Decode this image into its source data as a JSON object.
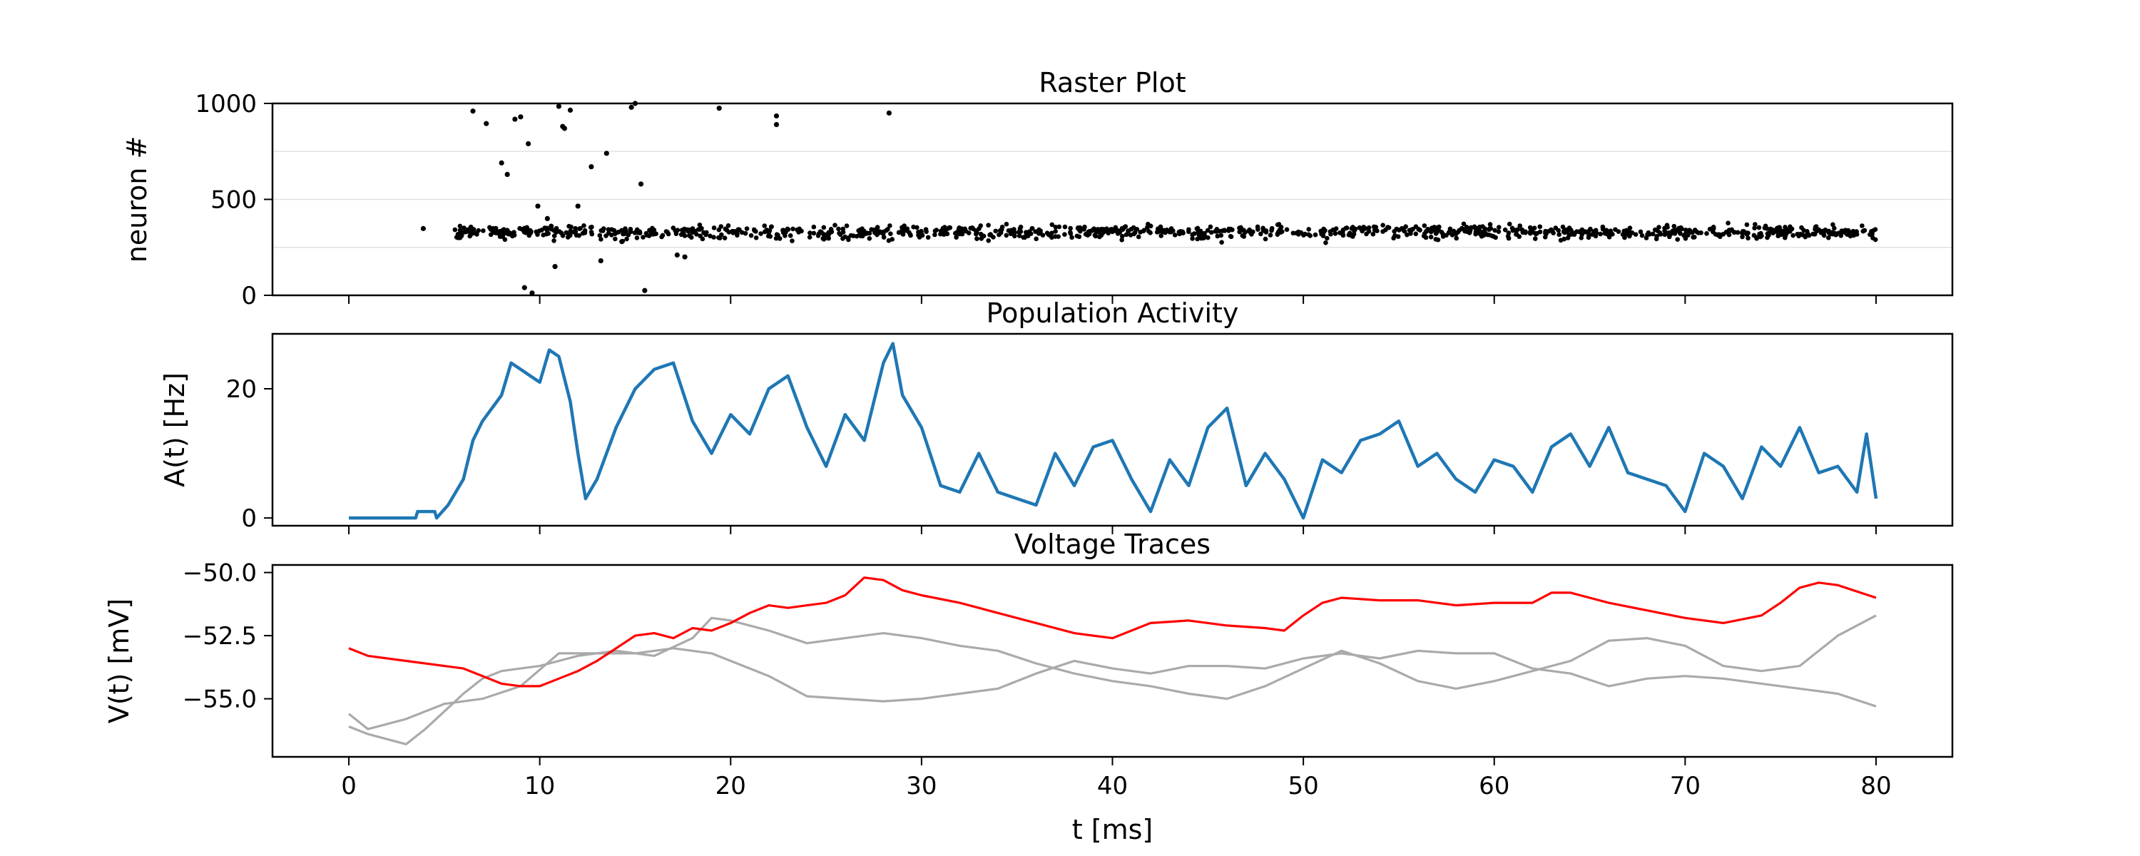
{
  "chart_data": [
    {
      "type": "scatter",
      "title": "Raster Plot",
      "xlabel": "",
      "ylabel": "neuron #",
      "xlim": [
        -4,
        84
      ],
      "ylim": [
        0,
        1000
      ],
      "yticks": [
        0,
        500,
        1000
      ],
      "grid": "horizontal",
      "points": [
        [
          3.9,
          348
        ],
        [
          6.5,
          960
        ],
        [
          7.2,
          895
        ],
        [
          8.0,
          690
        ],
        [
          8.3,
          630
        ],
        [
          8.7,
          918
        ],
        [
          9.0,
          930
        ],
        [
          9.2,
          40
        ],
        [
          9.4,
          790
        ],
        [
          9.6,
          12
        ],
        [
          9.9,
          465
        ],
        [
          10.4,
          400
        ],
        [
          10.6,
          360
        ],
        [
          10.8,
          150
        ],
        [
          11.0,
          985
        ],
        [
          11.2,
          880
        ],
        [
          11.3,
          870
        ],
        [
          11.6,
          965
        ],
        [
          11.8,
          330
        ],
        [
          12.0,
          465
        ],
        [
          12.7,
          670
        ],
        [
          13.2,
          180
        ],
        [
          13.5,
          740
        ],
        [
          14.3,
          280
        ],
        [
          14.8,
          980
        ],
        [
          15.0,
          1000
        ],
        [
          15.3,
          580
        ],
        [
          15.5,
          25
        ],
        [
          17.2,
          210
        ],
        [
          17.6,
          200
        ],
        [
          19.4,
          975
        ],
        [
          22.4,
          935
        ],
        [
          22.4,
          890
        ],
        [
          28.3,
          950
        ]
      ],
      "band": {
        "neuron_center": 330,
        "neuron_spread": 45,
        "t_start": 5.5,
        "t_end": 80,
        "spike_count": 1100
      }
    },
    {
      "type": "line",
      "title": "Population Activity",
      "xlabel": "",
      "ylabel": "A(t) [Hz]",
      "xlim": [
        -4,
        84
      ],
      "ylim": [
        -1.2,
        28.5
      ],
      "yticks": [
        0,
        20
      ],
      "series": [
        {
          "color": "#1f77b4",
          "x": [
            0,
            3.5,
            3.6,
            4.5,
            4.6,
            5.2,
            6,
            6.5,
            7,
            8,
            8.5,
            9,
            9.5,
            10,
            10.5,
            11,
            11.6,
            12,
            12.4,
            13,
            14,
            15,
            16,
            17,
            18,
            19,
            20,
            21,
            22,
            23,
            24,
            25,
            26,
            27,
            28,
            28.5,
            29,
            30,
            31,
            32,
            33,
            34,
            35,
            36,
            37,
            38,
            39,
            40,
            41,
            42,
            43,
            44,
            45,
            46,
            47,
            48,
            49,
            50,
            51,
            52,
            53,
            54,
            55,
            56,
            57,
            58,
            59,
            60,
            61,
            62,
            63,
            64,
            65,
            66,
            67,
            68,
            69,
            70,
            71,
            72,
            73,
            74,
            75,
            76,
            77,
            78,
            79,
            79.5,
            80
          ],
          "y": [
            0,
            0,
            1,
            1,
            0,
            2,
            6,
            12,
            15,
            19,
            24,
            23,
            22,
            21,
            26,
            25,
            18,
            10,
            3,
            6,
            14,
            20,
            23,
            24,
            15,
            10,
            16,
            13,
            20,
            22,
            14,
            8,
            16,
            12,
            24,
            27,
            19,
            14,
            5,
            4,
            10,
            4,
            3,
            2,
            10,
            5,
            11,
            12,
            6,
            1,
            9,
            5,
            14,
            17,
            5,
            10,
            6,
            0,
            9,
            7,
            12,
            13,
            15,
            8,
            10,
            6,
            4,
            9,
            8,
            4,
            11,
            13,
            8,
            14,
            7,
            6,
            5,
            1,
            10,
            8,
            3,
            11,
            8,
            14,
            7,
            8,
            4,
            13,
            3
          ]
        }
      ]
    },
    {
      "type": "line",
      "title": "Voltage Traces",
      "xlabel": "t [ms]",
      "ylabel": "V(t) [mV]",
      "xlim": [
        -4,
        84
      ],
      "ylim": [
        -57.3,
        -49.7
      ],
      "yticks": [
        -50.0,
        -52.5,
        -55.0
      ],
      "xticks": [
        0,
        10,
        20,
        30,
        40,
        50,
        60,
        70,
        80
      ],
      "series": [
        {
          "color": "#ff0000",
          "x": [
            0,
            1,
            3,
            5,
            6,
            7,
            8,
            9,
            10,
            11,
            12,
            13,
            14,
            15,
            16,
            17,
            18,
            19,
            20,
            21,
            22,
            23,
            24,
            25,
            26,
            27,
            28,
            29,
            30,
            32,
            34,
            36,
            38,
            40,
            42,
            44,
            46,
            48,
            49,
            50,
            51,
            52,
            54,
            56,
            58,
            60,
            62,
            63,
            64,
            65,
            66,
            68,
            70,
            72,
            74,
            75,
            76,
            77,
            78,
            80
          ],
          "y": [
            -53.0,
            -53.3,
            -53.5,
            -53.7,
            -53.8,
            -54.1,
            -54.4,
            -54.5,
            -54.5,
            -54.2,
            -53.9,
            -53.5,
            -53.0,
            -52.5,
            -52.4,
            -52.6,
            -52.2,
            -52.3,
            -52.0,
            -51.6,
            -51.3,
            -51.4,
            -51.3,
            -51.2,
            -50.9,
            -50.2,
            -50.3,
            -50.7,
            -50.9,
            -51.2,
            -51.6,
            -52.0,
            -52.4,
            -52.6,
            -52.0,
            -51.9,
            -52.1,
            -52.2,
            -52.3,
            -51.7,
            -51.2,
            -51.0,
            -51.1,
            -51.1,
            -51.3,
            -51.2,
            -51.2,
            -50.8,
            -50.8,
            -51.0,
            -51.2,
            -51.5,
            -51.8,
            -52.0,
            -51.7,
            -51.2,
            -50.6,
            -50.4,
            -50.5,
            -51.0
          ]
        },
        {
          "color": "#aaaaaa",
          "x": [
            0,
            1,
            3,
            5,
            7,
            9,
            11,
            13,
            15,
            17,
            19,
            20,
            22,
            24,
            26,
            28,
            30,
            32,
            34,
            36,
            38,
            40,
            42,
            44,
            46,
            48,
            50,
            52,
            54,
            56,
            58,
            60,
            62,
            64,
            66,
            68,
            70,
            72,
            74,
            76,
            78,
            80
          ],
          "y": [
            -55.6,
            -56.2,
            -55.8,
            -55.2,
            -55.0,
            -54.5,
            -53.2,
            -53.2,
            -53.2,
            -53.0,
            -53.2,
            -53.5,
            -54.1,
            -54.9,
            -55.0,
            -55.1,
            -55.0,
            -54.8,
            -54.6,
            -54.0,
            -53.5,
            -53.8,
            -54.0,
            -53.7,
            -53.7,
            -53.8,
            -53.4,
            -53.2,
            -53.4,
            -53.1,
            -53.2,
            -53.2,
            -53.8,
            -54.0,
            -54.5,
            -54.2,
            -54.1,
            -54.2,
            -54.4,
            -54.6,
            -54.8,
            -55.3
          ]
        },
        {
          "color": "#aaaaaa",
          "x": [
            0,
            1,
            2,
            3,
            4,
            5,
            6,
            7,
            8,
            9,
            10,
            11,
            12,
            14,
            16,
            18,
            19,
            20,
            22,
            24,
            26,
            28,
            30,
            32,
            34,
            36,
            38,
            40,
            42,
            44,
            46,
            48,
            50,
            52,
            54,
            56,
            58,
            60,
            62,
            64,
            66,
            68,
            70,
            72,
            74,
            76,
            78,
            80
          ],
          "y": [
            -56.1,
            -56.4,
            -56.6,
            -56.8,
            -56.2,
            -55.5,
            -54.8,
            -54.2,
            -53.9,
            -53.8,
            -53.7,
            -53.5,
            -53.3,
            -53.1,
            -53.3,
            -52.6,
            -51.8,
            -51.9,
            -52.3,
            -52.8,
            -52.6,
            -52.4,
            -52.6,
            -52.9,
            -53.1,
            -53.6,
            -54.0,
            -54.3,
            -54.5,
            -54.8,
            -55.0,
            -54.5,
            -53.8,
            -53.1,
            -53.6,
            -54.3,
            -54.6,
            -54.3,
            -53.9,
            -53.5,
            -52.7,
            -52.6,
            -52.9,
            -53.7,
            -53.9,
            -53.7,
            -52.5,
            -51.7
          ]
        }
      ]
    }
  ]
}
